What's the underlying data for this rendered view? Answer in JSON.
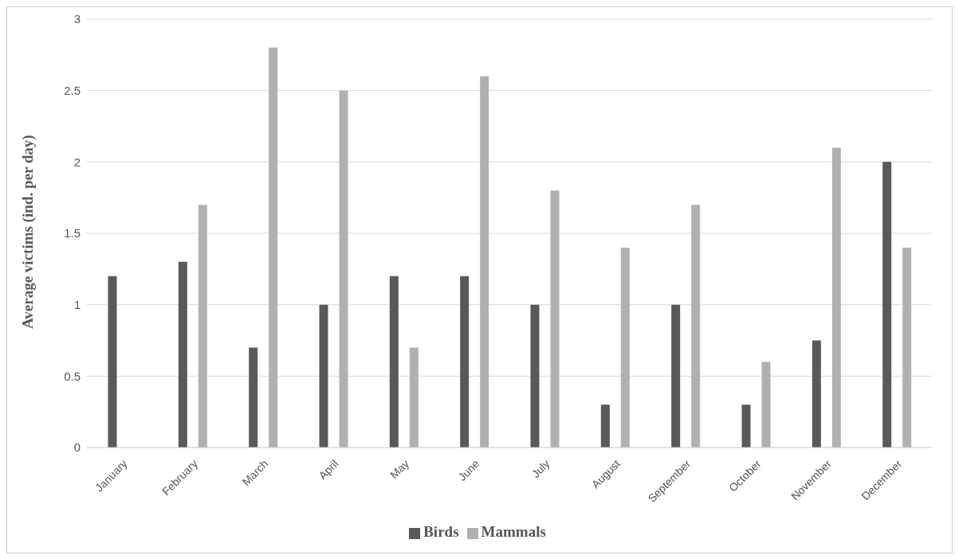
{
  "chart_data": {
    "type": "bar",
    "ylabel": "Average victims (ind. per day)",
    "categories": [
      "January",
      "February",
      "March",
      "April",
      "May",
      "June",
      "July",
      "August",
      "September",
      "October",
      "November",
      "December"
    ],
    "series": [
      {
        "name": "Birds",
        "color": "#595959",
        "values": [
          1.2,
          1.3,
          0.7,
          1.0,
          1.2,
          1.2,
          1.0,
          0.3,
          1.0,
          0.3,
          0.75,
          2.0
        ]
      },
      {
        "name": "Mammals",
        "color": "#b0b0b0",
        "values": [
          0,
          1.7,
          2.8,
          2.5,
          0.7,
          2.6,
          1.8,
          1.4,
          1.7,
          0.6,
          2.1,
          1.4
        ]
      }
    ],
    "ylim": [
      0,
      3
    ],
    "yticks": [
      0,
      0.5,
      1,
      1.5,
      2,
      2.5,
      3
    ],
    "grid": "y",
    "legend": "bottom"
  }
}
